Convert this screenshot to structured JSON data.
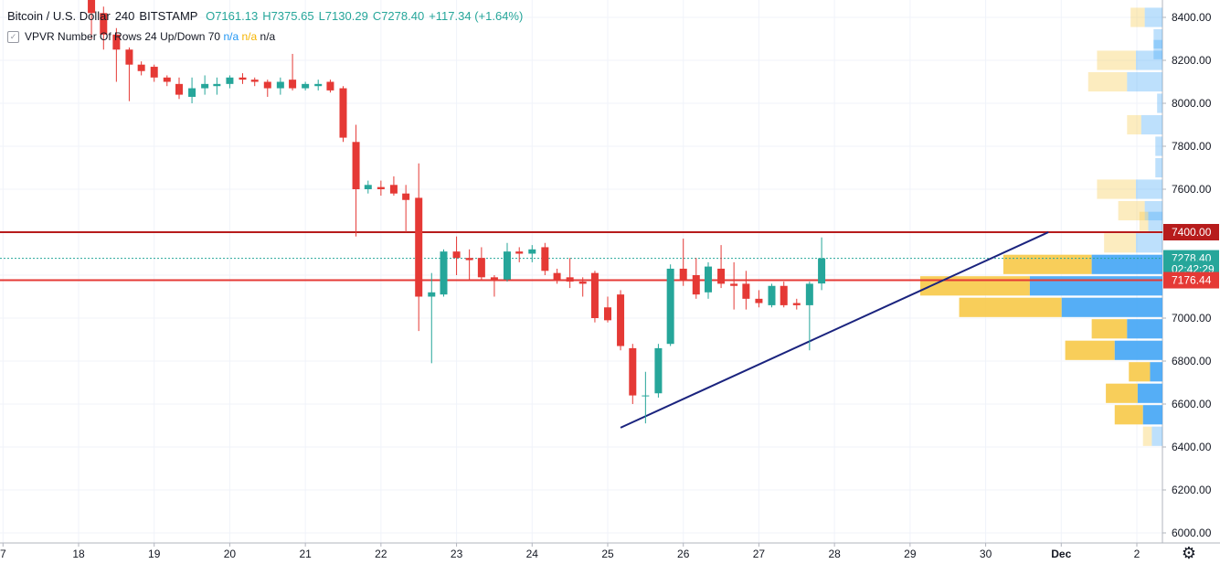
{
  "header": {
    "symbol": "Bitcoin / U.S. Dollar",
    "interval": "240",
    "exchange": "BITSTAMP",
    "open": "O7161.13",
    "high": "H7375.65",
    "low": "L7130.29",
    "close": "C7278.40",
    "change": "+117.34 (+1.64%)"
  },
  "indicator": {
    "name": "VPVR",
    "params": "Number Of Rows 24 Up/Down 70",
    "v1": "n/a",
    "v2": "n/a",
    "v3": "n/a"
  },
  "colors": {
    "up": "#26a69a",
    "down": "#e53935",
    "vp_up": "#42a5f5",
    "vp_down": "#f7c948",
    "resistance": "#b71c1c",
    "support": "#e53935",
    "trend": "#1a237e"
  },
  "chart_data": {
    "type": "candlestick",
    "y_axis": {
      "min": 5950,
      "max": 8480,
      "ticks": [
        "8400.00",
        "8200.00",
        "8000.00",
        "7800.00",
        "7600.00",
        "7400.00",
        "7200.00",
        "7000.00",
        "6800.00",
        "6600.00",
        "6400.00",
        "6200.00",
        "6000.00"
      ]
    },
    "x_axis": {
      "labels": [
        "7",
        "18",
        "19",
        "20",
        "21",
        "22",
        "23",
        "24",
        "25",
        "26",
        "27",
        "28",
        "29",
        "30",
        "Dec",
        "2"
      ],
      "label_days": [
        17,
        18,
        19,
        20,
        21,
        22,
        23,
        24,
        25,
        26,
        27,
        28,
        29,
        30,
        31,
        32
      ]
    },
    "price_labels": [
      {
        "text": "7400.00",
        "price": 7400,
        "bg": "#b71c1c"
      },
      {
        "text": "7278.40",
        "price": 7278.4,
        "bg": "#26a69a"
      },
      {
        "text": "02:42:29",
        "price": 7228,
        "bg": "#26a69a"
      },
      {
        "text": "7176.44",
        "price": 7176.44,
        "bg": "#e53935"
      }
    ],
    "horizontal_lines": [
      {
        "price": 7400,
        "color": "#b71c1c",
        "style": "solid"
      },
      {
        "price": 7176.44,
        "color": "#e53935",
        "style": "solid"
      },
      {
        "price": 7278.4,
        "color": "#26a69a",
        "style": "dotted"
      }
    ],
    "trendline": {
      "from": {
        "day": 25.17,
        "price": 6490
      },
      "to": {
        "day": 30.83,
        "price": 7400
      }
    },
    "candles": [
      {
        "t": 18.17,
        "o": 8500,
        "h": 8520,
        "l": 8300,
        "c": 8420
      },
      {
        "t": 18.33,
        "o": 8420,
        "h": 8450,
        "l": 8250,
        "c": 8320
      },
      {
        "t": 18.5,
        "o": 8320,
        "h": 8350,
        "l": 8100,
        "c": 8250
      },
      {
        "t": 18.67,
        "o": 8250,
        "h": 8260,
        "l": 8010,
        "c": 8180
      },
      {
        "t": 18.83,
        "o": 8180,
        "h": 8195,
        "l": 8130,
        "c": 8150
      },
      {
        "t": 19.0,
        "o": 8170,
        "h": 8180,
        "l": 8100,
        "c": 8120
      },
      {
        "t": 19.17,
        "o": 8120,
        "h": 8130,
        "l": 8080,
        "c": 8100
      },
      {
        "t": 19.33,
        "o": 8090,
        "h": 8120,
        "l": 8020,
        "c": 8040
      },
      {
        "t": 19.5,
        "o": 8030,
        "h": 8120,
        "l": 8000,
        "c": 8070
      },
      {
        "t": 19.67,
        "o": 8070,
        "h": 8130,
        "l": 8040,
        "c": 8090
      },
      {
        "t": 19.83,
        "o": 8080,
        "h": 8120,
        "l": 8040,
        "c": 8090
      },
      {
        "t": 20.0,
        "o": 8090,
        "h": 8130,
        "l": 8070,
        "c": 8120
      },
      {
        "t": 20.17,
        "o": 8120,
        "h": 8140,
        "l": 8090,
        "c": 8110
      },
      {
        "t": 20.33,
        "o": 8110,
        "h": 8120,
        "l": 8080,
        "c": 8100
      },
      {
        "t": 20.5,
        "o": 8100,
        "h": 8110,
        "l": 8030,
        "c": 8070
      },
      {
        "t": 20.67,
        "o": 8070,
        "h": 8120,
        "l": 8040,
        "c": 8100
      },
      {
        "t": 20.83,
        "o": 8110,
        "h": 8230,
        "l": 8060,
        "c": 8070
      },
      {
        "t": 21.0,
        "o": 8070,
        "h": 8100,
        "l": 8060,
        "c": 8090
      },
      {
        "t": 21.17,
        "o": 8080,
        "h": 8110,
        "l": 8060,
        "c": 8090
      },
      {
        "t": 21.33,
        "o": 8100,
        "h": 8110,
        "l": 8050,
        "c": 8060
      },
      {
        "t": 21.5,
        "o": 8070,
        "h": 8080,
        "l": 7820,
        "c": 7840
      },
      {
        "t": 21.67,
        "o": 7820,
        "h": 7900,
        "l": 7380,
        "c": 7600
      },
      {
        "t": 21.83,
        "o": 7600,
        "h": 7640,
        "l": 7580,
        "c": 7620
      },
      {
        "t": 22.0,
        "o": 7610,
        "h": 7640,
        "l": 7570,
        "c": 7600
      },
      {
        "t": 22.17,
        "o": 7620,
        "h": 7660,
        "l": 7570,
        "c": 7580
      },
      {
        "t": 22.33,
        "o": 7580,
        "h": 7620,
        "l": 7400,
        "c": 7550
      },
      {
        "t": 22.5,
        "o": 7560,
        "h": 7720,
        "l": 6940,
        "c": 7100
      },
      {
        "t": 22.67,
        "o": 7100,
        "h": 7210,
        "l": 6790,
        "c": 7120
      },
      {
        "t": 22.83,
        "o": 7110,
        "h": 7320,
        "l": 7100,
        "c": 7310
      },
      {
        "t": 23.0,
        "o": 7310,
        "h": 7380,
        "l": 7200,
        "c": 7280
      },
      {
        "t": 23.17,
        "o": 7280,
        "h": 7320,
        "l": 7180,
        "c": 7270
      },
      {
        "t": 23.33,
        "o": 7280,
        "h": 7330,
        "l": 7180,
        "c": 7190
      },
      {
        "t": 23.5,
        "o": 7190,
        "h": 7200,
        "l": 7100,
        "c": 7180
      },
      {
        "t": 23.67,
        "o": 7180,
        "h": 7350,
        "l": 7170,
        "c": 7310
      },
      {
        "t": 23.83,
        "o": 7310,
        "h": 7330,
        "l": 7260,
        "c": 7300
      },
      {
        "t": 24.0,
        "o": 7300,
        "h": 7340,
        "l": 7260,
        "c": 7320
      },
      {
        "t": 24.17,
        "o": 7330,
        "h": 7350,
        "l": 7200,
        "c": 7220
      },
      {
        "t": 24.33,
        "o": 7210,
        "h": 7230,
        "l": 7160,
        "c": 7180
      },
      {
        "t": 24.5,
        "o": 7190,
        "h": 7280,
        "l": 7140,
        "c": 7170
      },
      {
        "t": 24.67,
        "o": 7170,
        "h": 7190,
        "l": 7100,
        "c": 7160
      },
      {
        "t": 24.83,
        "o": 7210,
        "h": 7220,
        "l": 6980,
        "c": 7000
      },
      {
        "t": 25.0,
        "o": 7050,
        "h": 7100,
        "l": 6980,
        "c": 6990
      },
      {
        "t": 25.17,
        "o": 7110,
        "h": 7130,
        "l": 6850,
        "c": 6870
      },
      {
        "t": 25.33,
        "o": 6860,
        "h": 6880,
        "l": 6600,
        "c": 6640
      },
      {
        "t": 25.5,
        "o": 6640,
        "h": 6750,
        "l": 6510,
        "c": 6640
      },
      {
        "t": 25.67,
        "o": 6650,
        "h": 6880,
        "l": 6630,
        "c": 6860
      },
      {
        "t": 25.83,
        "o": 6880,
        "h": 7250,
        "l": 6870,
        "c": 7230
      },
      {
        "t": 26.0,
        "o": 7230,
        "h": 7370,
        "l": 7150,
        "c": 7180
      },
      {
        "t": 26.17,
        "o": 7200,
        "h": 7280,
        "l": 7090,
        "c": 7110
      },
      {
        "t": 26.33,
        "o": 7120,
        "h": 7260,
        "l": 7090,
        "c": 7240
      },
      {
        "t": 26.5,
        "o": 7230,
        "h": 7340,
        "l": 7140,
        "c": 7160
      },
      {
        "t": 26.67,
        "o": 7160,
        "h": 7260,
        "l": 7040,
        "c": 7150
      },
      {
        "t": 26.83,
        "o": 7160,
        "h": 7220,
        "l": 7040,
        "c": 7090
      },
      {
        "t": 27.0,
        "o": 7090,
        "h": 7130,
        "l": 7050,
        "c": 7070
      },
      {
        "t": 27.17,
        "o": 7060,
        "h": 7160,
        "l": 7050,
        "c": 7150
      },
      {
        "t": 27.33,
        "o": 7150,
        "h": 7170,
        "l": 7050,
        "c": 7060
      },
      {
        "t": 27.5,
        "o": 7070,
        "h": 7090,
        "l": 7040,
        "c": 7060
      },
      {
        "t": 27.67,
        "o": 7060,
        "h": 7170,
        "l": 6850,
        "c": 7160
      },
      {
        "t": 27.83,
        "o": 7161.13,
        "h": 7375.65,
        "l": 7130.29,
        "c": 7278.4
      }
    ],
    "volume_profile": [
      {
        "price": 8400,
        "up": 8,
        "down": 10
      },
      {
        "price": 8300,
        "up": 0,
        "down": 5
      },
      {
        "price": 8250,
        "up": 0,
        "down": 5
      },
      {
        "price": 8200,
        "up": 22,
        "down": 15
      },
      {
        "price": 8100,
        "up": 22,
        "down": 20
      },
      {
        "price": 8000,
        "up": 0,
        "down": 3
      },
      {
        "price": 7900,
        "up": 8,
        "down": 12
      },
      {
        "price": 7800,
        "up": 0,
        "down": 4
      },
      {
        "price": 7700,
        "up": 0,
        "down": 4
      },
      {
        "price": 7600,
        "up": 22,
        "down": 15
      },
      {
        "price": 7500,
        "up": 15,
        "down": 10
      },
      {
        "price": 7450,
        "up": 5,
        "down": 8
      },
      {
        "price": 7350,
        "up": 18,
        "down": 15
      },
      {
        "price": 7250,
        "up": 50,
        "down": 40
      },
      {
        "price": 7150,
        "up": 62,
        "down": 75
      },
      {
        "price": 7050,
        "up": 58,
        "down": 57
      },
      {
        "price": 6950,
        "up": 20,
        "down": 20
      },
      {
        "price": 6850,
        "up": 28,
        "down": 27
      },
      {
        "price": 6750,
        "up": 12,
        "down": 7
      },
      {
        "price": 6650,
        "up": 18,
        "down": 14
      },
      {
        "price": 6550,
        "up": 16,
        "down": 11
      },
      {
        "price": 6450,
        "up": 5,
        "down": 6
      }
    ]
  }
}
